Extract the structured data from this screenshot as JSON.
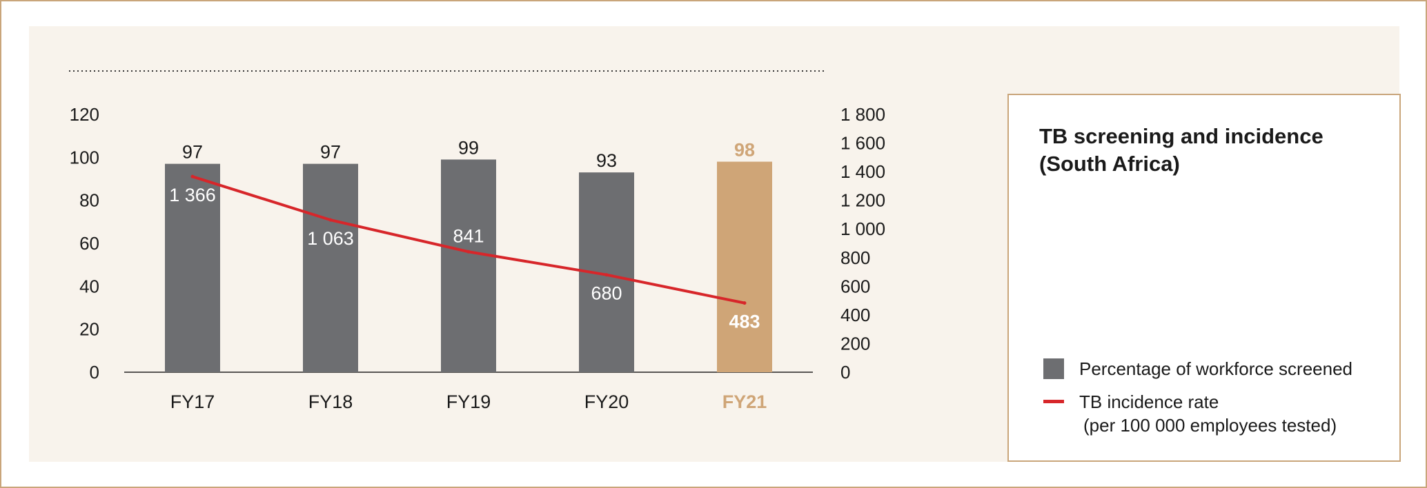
{
  "chart_data": {
    "type": "bar",
    "title": "TB screening and incidence (South Africa)",
    "title_lines": [
      "TB screening and incidence",
      "(South Africa)"
    ],
    "categories": [
      "FY17",
      "FY18",
      "FY19",
      "FY20",
      "FY21"
    ],
    "highlight_category": "FY21",
    "series": [
      {
        "name": "Percentage of workforce screened",
        "type": "bar",
        "axis": "left",
        "values": [
          97,
          97,
          99,
          93,
          98
        ],
        "labels": [
          "97",
          "97",
          "99",
          "93",
          "98"
        ]
      },
      {
        "name": "TB incidence rate",
        "name_sub": "(per 100 000 employees tested)",
        "type": "line",
        "axis": "right",
        "values": [
          1366,
          1063,
          841,
          680,
          483
        ],
        "labels": [
          "1 366",
          "1 063",
          "841",
          "680",
          "483"
        ]
      }
    ],
    "ylim": [
      0,
      120
    ],
    "yticks": [
      "0",
      "20",
      "40",
      "60",
      "80",
      "100",
      "120"
    ],
    "y2lim": [
      0,
      1800
    ],
    "y2ticks": [
      "0",
      "200",
      "400",
      "600",
      "800",
      "1 000",
      "1 200",
      "1 400",
      "1 600",
      "1 800"
    ],
    "grid": false,
    "legend_position": "right",
    "colors": {
      "bar": "#6d6e71",
      "highlight": "#cfa577",
      "line": "#d7262a",
      "text": "#1a1a1a",
      "panel": "#f8f3ec",
      "border": "#c9a57a"
    }
  }
}
